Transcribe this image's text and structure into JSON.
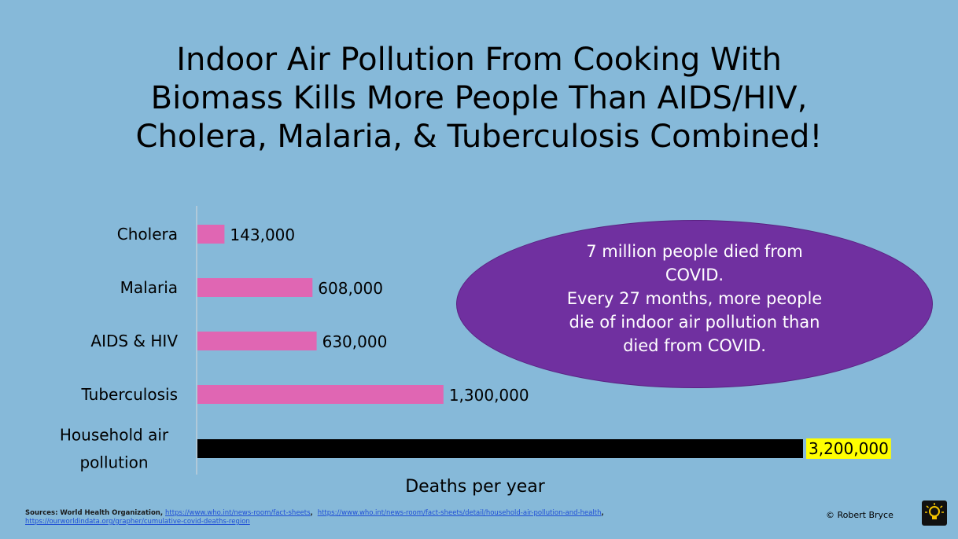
{
  "title_lines": [
    "Indoor Air Pollution From Cooking With",
    "Biomass Kills More People Than AIDS/HIV,",
    "Cholera, Malaria, & Tuberculosis Combined!"
  ],
  "chart_data": {
    "type": "bar",
    "orientation": "horizontal",
    "categories": [
      "Cholera",
      "Malaria",
      "AIDS & HIV",
      "Tuberculosis",
      "Household air pollution"
    ],
    "category_label_lines": [
      [
        "Cholera"
      ],
      [
        "Malaria"
      ],
      [
        "AIDS & HIV"
      ],
      [
        "Tuberculosis"
      ],
      [
        "Household air",
        "pollution"
      ]
    ],
    "values": [
      143000,
      608000,
      630000,
      1300000,
      3200000
    ],
    "data_labels": [
      "143,000",
      "608,000",
      "630,000",
      "1,300,000",
      "3,200,000"
    ],
    "xlabel": "Deaths per year",
    "xlim": [
      0,
      3300000
    ],
    "grid": false,
    "colors": {
      "default_bar": "#e066b3",
      "highlight_bar": "#000000",
      "highlight_label_bg": "#ffff00"
    },
    "highlight_index": 4
  },
  "callout": {
    "lines": [
      "7 million people died from",
      "COVID.",
      "Every 27 months, more people",
      "die of indoor air pollution than",
      "died from COVID."
    ],
    "color": "#7030a0"
  },
  "sources": {
    "prefix": "Sources: World Health Organization, ",
    "link1": "https://www.who.int/news-room/fact-sheets",
    "link2": "https://www.who.int/news-room/fact-sheets/detail/household-air-pollution-and-health",
    "link3": "https://ourworldindata.org/grapher/cumulative-covid-deaths-region"
  },
  "copyright": "© Robert Bryce",
  "logo_icon": "lightbulb-icon",
  "background_color": "#86b9d9"
}
